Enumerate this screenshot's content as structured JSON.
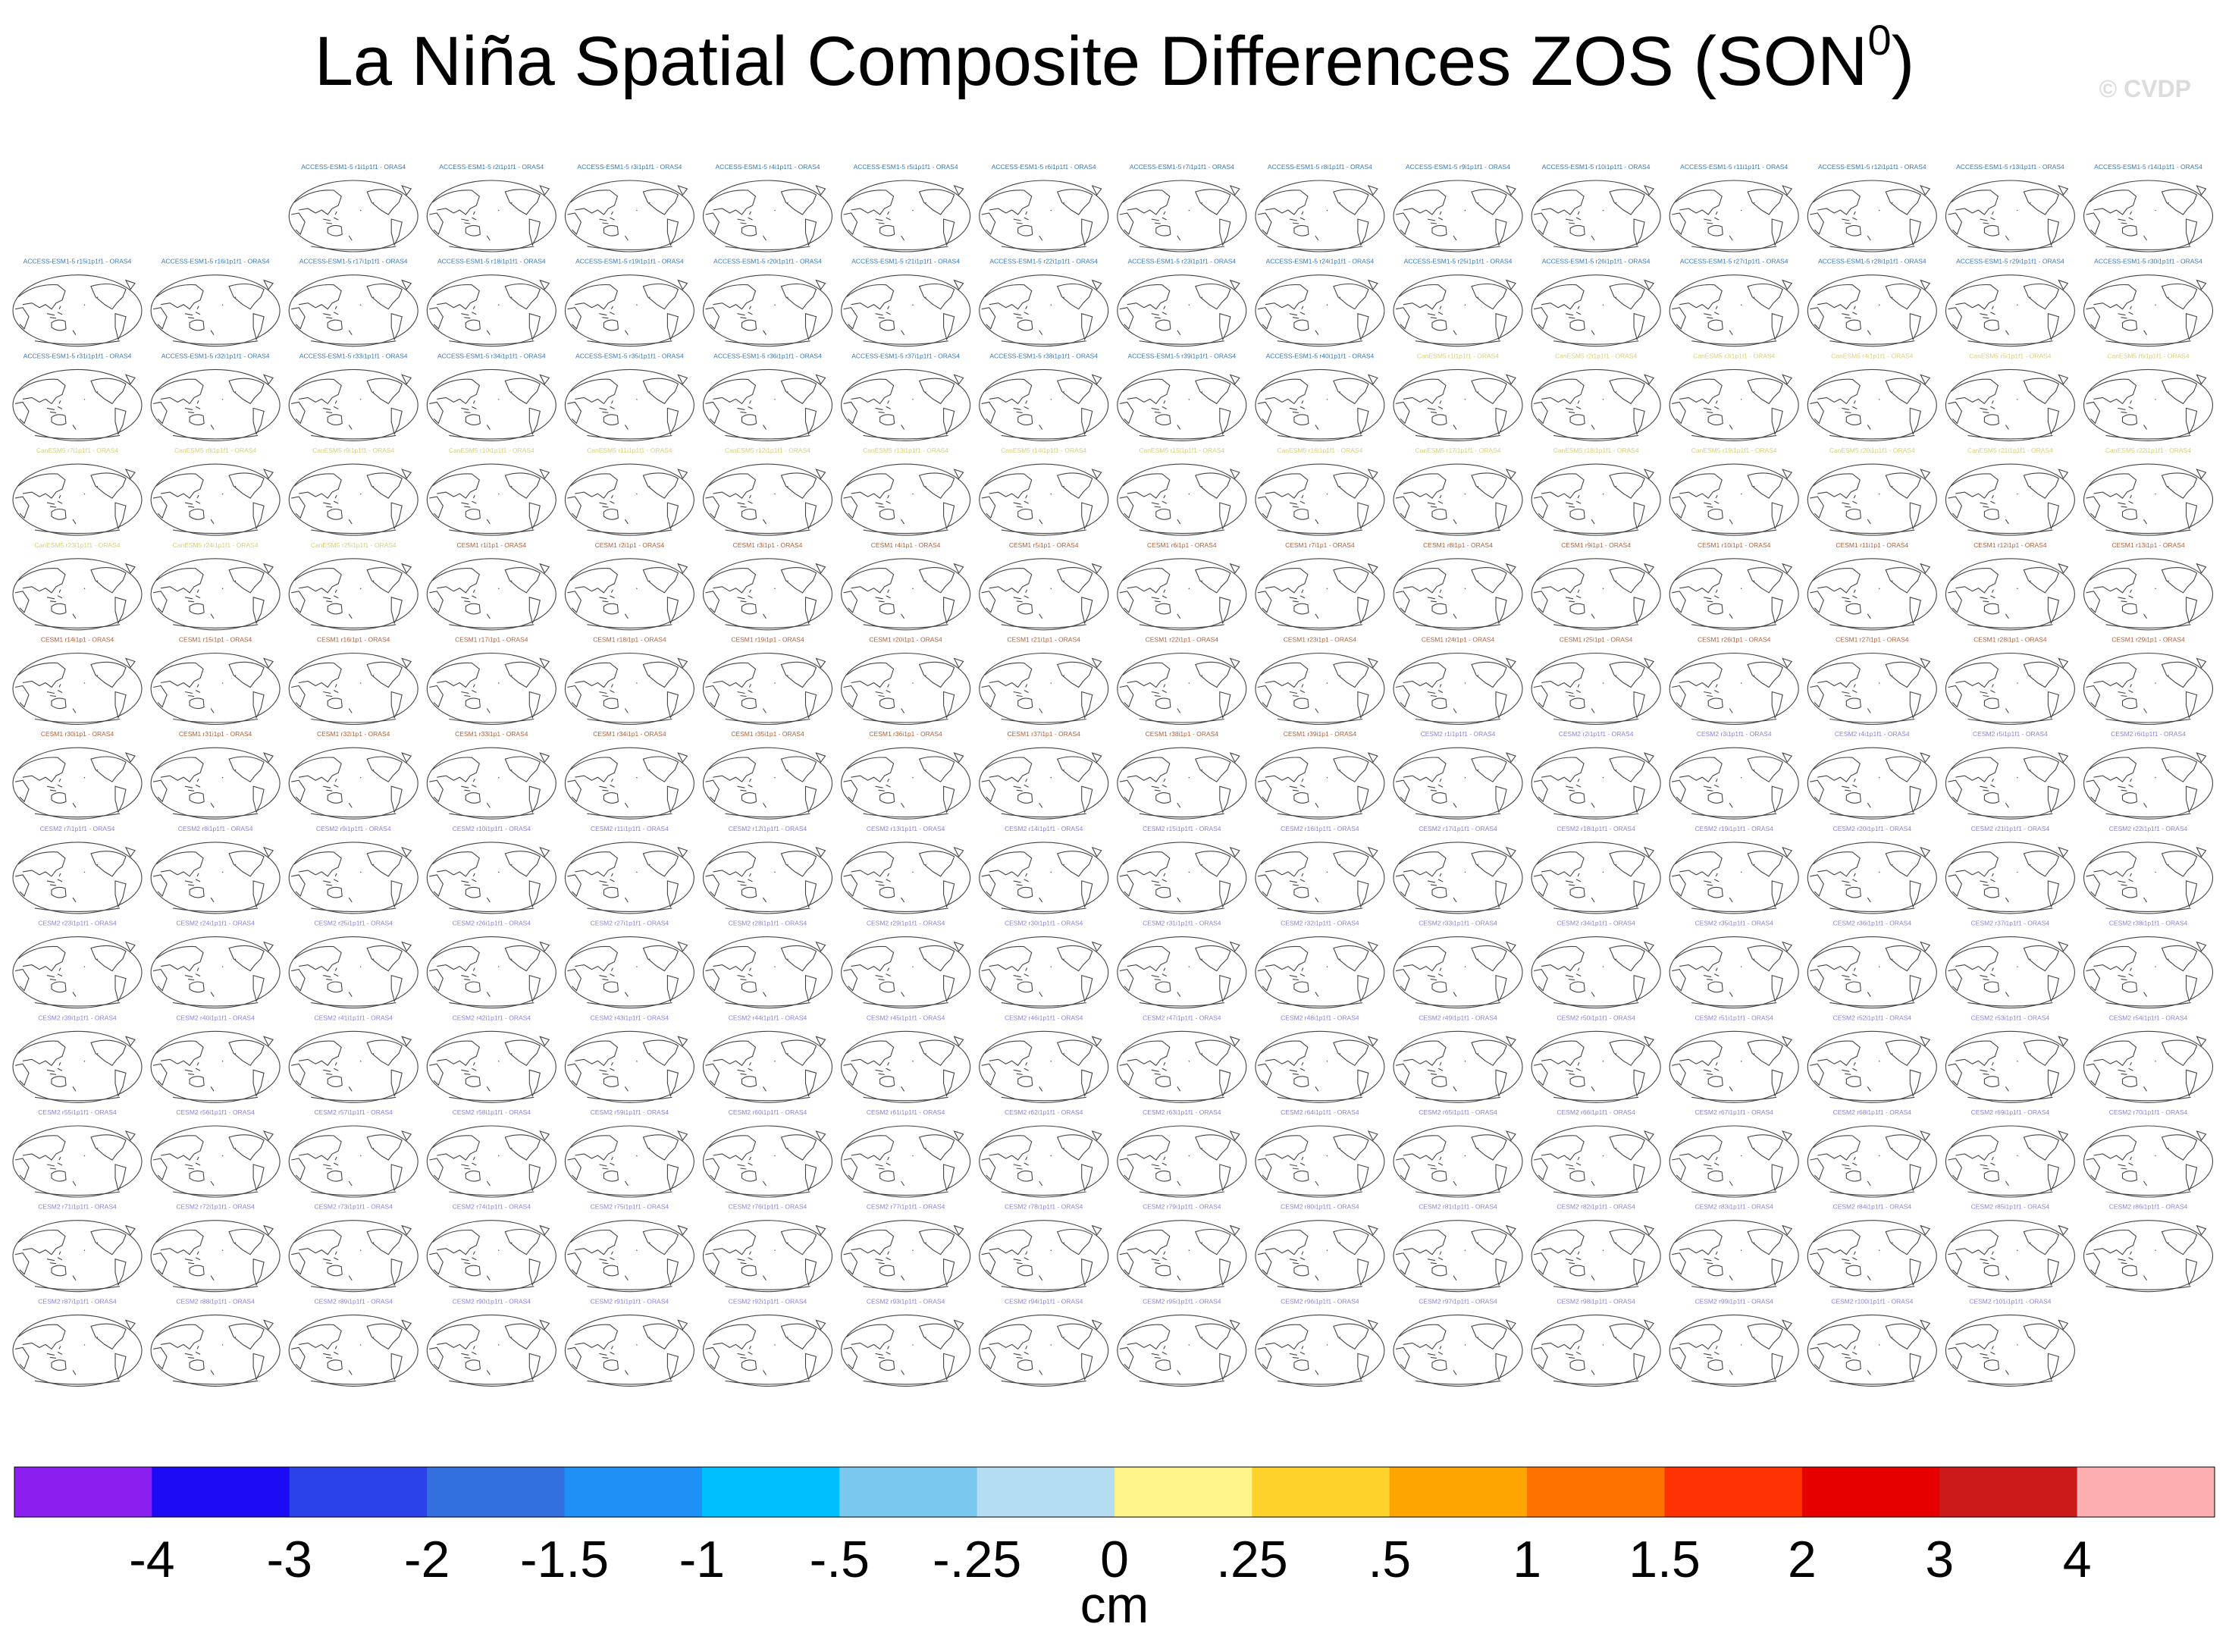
{
  "title": "La Niña Spatial Composite Differences ZOS (SON",
  "title_sup": "0",
  "title_end": ")",
  "copyright": "© CVDP",
  "groups": [
    {
      "color": "#3a78b4",
      "labels": [
        "ACCESS-ESM1-5 r1i1p1f1 - ORAS4",
        "ACCESS-ESM1-5 r2i1p1f1 - ORAS4",
        "ACCESS-ESM1-5 r3i1p1f1 - ORAS4",
        "ACCESS-ESM1-5 r4i1p1f1 - ORAS4",
        "ACCESS-ESM1-5 r5i1p1f1 - ORAS4",
        "ACCESS-ESM1-5 r6i1p1f1 - ORAS4",
        "ACCESS-ESM1-5 r7i1p1f1 - ORAS4",
        "ACCESS-ESM1-5 r8i1p1f1 - ORAS4",
        "ACCESS-ESM1-5 r9i1p1f1 - ORAS4",
        "ACCESS-ESM1-5 r10i1p1f1 - ORAS4",
        "ACCESS-ESM1-5 r11i1p1f1 - ORAS4",
        "ACCESS-ESM1-5 r12i1p1f1 - ORAS4",
        "ACCESS-ESM1-5 r13i1p1f1 - ORAS4",
        "ACCESS-ESM1-5 r14i1p1f1 - ORAS4",
        "ACCESS-ESM1-5 r15i1p1f1 - ORAS4",
        "ACCESS-ESM1-5 r16i1p1f1 - ORAS4",
        "ACCESS-ESM1-5 r17i1p1f1 - ORAS4",
        "ACCESS-ESM1-5 r18i1p1f1 - ORAS4",
        "ACCESS-ESM1-5 r19i1p1f1 - ORAS4",
        "ACCESS-ESM1-5 r20i1p1f1 - ORAS4",
        "ACCESS-ESM1-5 r21i1p1f1 - ORAS4",
        "ACCESS-ESM1-5 r22i1p1f1 - ORAS4",
        "ACCESS-ESM1-5 r23i1p1f1 - ORAS4",
        "ACCESS-ESM1-5 r24i1p1f1 - ORAS4",
        "ACCESS-ESM1-5 r25i1p1f1 - ORAS4",
        "ACCESS-ESM1-5 r26i1p1f1 - ORAS4",
        "ACCESS-ESM1-5 r27i1p1f1 - ORAS4",
        "ACCESS-ESM1-5 r28i1p1f1 - ORAS4",
        "ACCESS-ESM1-5 r29i1p1f1 - ORAS4",
        "ACCESS-ESM1-5 r30i1p1f1 - ORAS4",
        "ACCESS-ESM1-5 r31i1p1f1 - ORAS4",
        "ACCESS-ESM1-5 r32i1p1f1 - ORAS4",
        "ACCESS-ESM1-5 r33i1p1f1 - ORAS4",
        "ACCESS-ESM1-5 r34i1p1f1 - ORAS4",
        "ACCESS-ESM1-5 r35i1p1f1 - ORAS4",
        "ACCESS-ESM1-5 r36i1p1f1 - ORAS4",
        "ACCESS-ESM1-5 r37i1p1f1 - ORAS4",
        "ACCESS-ESM1-5 r38i1p1f1 - ORAS4",
        "ACCESS-ESM1-5 r39i1p1f1 - ORAS4",
        "ACCESS-ESM1-5 r40i1p1f1 - ORAS4"
      ]
    },
    {
      "color": "#d8cf78",
      "labels": [
        "CanESM5 r1i1p1f1 - ORAS4",
        "CanESM5 r2i1p1f1 - ORAS4",
        "CanESM5 r3i1p1f1 - ORAS4",
        "CanESM5 r4i1p1f1 - ORAS4",
        "CanESM5 r5i1p1f1 - ORAS4",
        "CanESM5 r6i1p1f1 - ORAS4",
        "CanESM5 r7i1p1f1 - ORAS4",
        "CanESM5 r8i1p1f1 - ORAS4",
        "CanESM5 r9i1p1f1 - ORAS4",
        "CanESM5 r10i1p1f1 - ORAS4",
        "CanESM5 r11i1p1f1 - ORAS4",
        "CanESM5 r12i1p1f1 - ORAS4",
        "CanESM5 r13i1p1f1 - ORAS4",
        "CanESM5 r14i1p1f1 - ORAS4",
        "CanESM5 r15i1p1f1 - ORAS4",
        "CanESM5 r16i1p1f1 - ORAS4",
        "CanESM5 r17i1p1f1 - ORAS4",
        "CanESM5 r18i1p1f1 - ORAS4",
        "CanESM5 r19i1p1f1 - ORAS4",
        "CanESM5 r20i1p1f1 - ORAS4",
        "CanESM5 r21i1p1f1 - ORAS4",
        "CanESM5 r22i1p1f1 - ORAS4",
        "CanESM5 r23i1p1f1 - ORAS4",
        "CanESM5 r24i1p1f1 - ORAS4",
        "CanESM5 r25i1p1f1 - ORAS4"
      ]
    },
    {
      "color": "#b0603a",
      "labels": [
        "CESM1 r1i1p1 - ORAS4",
        "CESM1 r2i1p1 - ORAS4",
        "CESM1 r3i1p1 - ORAS4",
        "CESM1 r4i1p1 - ORAS4",
        "CESM1 r5i1p1 - ORAS4",
        "CESM1 r6i1p1 - ORAS4",
        "CESM1 r7i1p1 - ORAS4",
        "CESM1 r8i1p1 - ORAS4",
        "CESM1 r9i1p1 - ORAS4",
        "CESM1 r10i1p1 - ORAS4",
        "CESM1 r11i1p1 - ORAS4",
        "CESM1 r12i1p1 - ORAS4",
        "CESM1 r13i1p1 - ORAS4",
        "CESM1 r14i1p1 - ORAS4",
        "CESM1 r15i1p1 - ORAS4",
        "CESM1 r16i1p1 - ORAS4",
        "CESM1 r17i1p1 - ORAS4",
        "CESM1 r18i1p1 - ORAS4",
        "CESM1 r19i1p1 - ORAS4",
        "CESM1 r20i1p1 - ORAS4",
        "CESM1 r21i1p1 - ORAS4",
        "CESM1 r22i1p1 - ORAS4",
        "CESM1 r23i1p1 - ORAS4",
        "CESM1 r24i1p1 - ORAS4",
        "CESM1 r25i1p1 - ORAS4",
        "CESM1 r26i1p1 - ORAS4",
        "CESM1 r27i1p1 - ORAS4",
        "CESM1 r28i1p1 - ORAS4",
        "CESM1 r29i1p1 - ORAS4",
        "CESM1 r30i1p1 - ORAS4",
        "CESM1 r31i1p1 - ORAS4",
        "CESM1 r32i1p1 - ORAS4",
        "CESM1 r33i1p1 - ORAS4",
        "CESM1 r34i1p1 - ORAS4",
        "CESM1 r35i1p1 - ORAS4",
        "CESM1 r36i1p1 - ORAS4",
        "CESM1 r37i1p1 - ORAS4",
        "CESM1 r38i1p1 - ORAS4",
        "CESM1 r39i1p1 - ORAS4"
      ]
    },
    {
      "color": "#8d82d8",
      "labels": [
        "CESM2 r1i1p1f1 - ORAS4",
        "CESM2 r2i1p1f1 - ORAS4",
        "CESM2 r3i1p1f1 - ORAS4",
        "CESM2 r4i1p1f1 - ORAS4",
        "CESM2 r5i1p1f1 - ORAS4",
        "CESM2 r6i1p1f1 - ORAS4",
        "CESM2 r7i1p1f1 - ORAS4",
        "CESM2 r8i1p1f1 - ORAS4",
        "CESM2 r9i1p1f1 - ORAS4",
        "CESM2 r10i1p1f1 - ORAS4",
        "CESM2 r11i1p1f1 - ORAS4",
        "CESM2 r12i1p1f1 - ORAS4",
        "CESM2 r13i1p1f1 - ORAS4",
        "CESM2 r14i1p1f1 - ORAS4",
        "CESM2 r15i1p1f1 - ORAS4",
        "CESM2 r16i1p1f1 - ORAS4",
        "CESM2 r17i1p1f1 - ORAS4",
        "CESM2 r18i1p1f1 - ORAS4",
        "CESM2 r19i1p1f1 - ORAS4",
        "CESM2 r20i1p1f1 - ORAS4",
        "CESM2 r21i1p1f1 - ORAS4",
        "CESM2 r22i1p1f1 - ORAS4",
        "CESM2 r23i1p1f1 - ORAS4",
        "CESM2 r24i1p1f1 - ORAS4",
        "CESM2 r25i1p1f1 - ORAS4",
        "CESM2 r26i1p1f1 - ORAS4",
        "CESM2 r27i1p1f1 - ORAS4",
        "CESM2 r28i1p1f1 - ORAS4",
        "CESM2 r29i1p1f1 - ORAS4",
        "CESM2 r30i1p1f1 - ORAS4",
        "CESM2 r31i1p1f1 - ORAS4",
        "CESM2 r32i1p1f1 - ORAS4",
        "CESM2 r33i1p1f1 - ORAS4",
        "CESM2 r34i1p1f1 - ORAS4",
        "CESM2 r35i1p1f1 - ORAS4",
        "CESM2 r36i1p1f1 - ORAS4",
        "CESM2 r37i1p1f1 - ORAS4",
        "CESM2 r38i1p1f1 - ORAS4",
        "CESM2 r39i1p1f1 - ORAS4",
        "CESM2 r40i1p1f1 - ORAS4",
        "CESM2 r41i1p1f1 - ORAS4",
        "CESM2 r42i1p1f1 - ORAS4",
        "CESM2 r43i1p1f1 - ORAS4",
        "CESM2 r44i1p1f1 - ORAS4",
        "CESM2 r45i1p1f1 - ORAS4",
        "CESM2 r46i1p1f1 - ORAS4",
        "CESM2 r47i1p1f1 - ORAS4",
        "CESM2 r48i1p1f1 - ORAS4",
        "CESM2 r49i1p1f1 - ORAS4",
        "CESM2 r50i1p1f1 - ORAS4",
        "CESM2 r51i1p1f1 - ORAS4",
        "CESM2 r52i1p1f1 - ORAS4",
        "CESM2 r53i1p1f1 - ORAS4",
        "CESM2 r54i1p1f1 - ORAS4",
        "CESM2 r55i1p1f1 - ORAS4",
        "CESM2 r56i1p1f1 - ORAS4",
        "CESM2 r57i1p1f1 - ORAS4",
        "CESM2 r58i1p1f1 - ORAS4",
        "CESM2 r59i1p1f1 - ORAS4",
        "CESM2 r60i1p1f1 - ORAS4",
        "CESM2 r61i1p1f1 - ORAS4",
        "CESM2 r62i1p1f1 - ORAS4",
        "CESM2 r63i1p1f1 - ORAS4",
        "CESM2 r64i1p1f1 - ORAS4",
        "CESM2 r65i1p1f1 - ORAS4",
        "CESM2 r66i1p1f1 - ORAS4",
        "CESM2 r67i1p1f1 - ORAS4",
        "CESM2 r68i1p1f1 - ORAS4",
        "CESM2 r69i1p1f1 - ORAS4",
        "CESM2 r70i1p1f1 - ORAS4",
        "CESM2 r71i1p1f1 - ORAS4",
        "CESM2 r72i1p1f1 - ORAS4",
        "CESM2 r73i1p1f1 - ORAS4",
        "CESM2 r74i1p1f1 - ORAS4",
        "CESM2 r75i1p1f1 - ORAS4",
        "CESM2 r76i1p1f1 - ORAS4",
        "CESM2 r77i1p1f1 - ORAS4",
        "CESM2 r78i1p1f1 - ORAS4",
        "CESM2 r79i1p1f1 - ORAS4",
        "CESM2 r80i1p1f1 - ORAS4",
        "CESM2 r81i1p1f1 - ORAS4",
        "CESM2 r82i1p1f1 - ORAS4",
        "CESM2 r83i1p1f1 - ORAS4",
        "CESM2 r84i1p1f1 - ORAS4",
        "CESM2 r85i1p1f1 - ORAS4",
        "CESM2 r86i1p1f1 - ORAS4",
        "CESM2 r87i1p1f1 - ORAS4",
        "CESM2 r88i1p1f1 - ORAS4",
        "CESM2 r89i1p1f1 - ORAS4",
        "CESM2 r90i1p1f1 - ORAS4",
        "CESM2 r91i1p1f1 - ORAS4",
        "CESM2 r92i1p1f1 - ORAS4",
        "CESM2 r93i1p1f1 - ORAS4",
        "CESM2 r94i1p1f1 - ORAS4",
        "CESM2 r95i1p1f1 - ORAS4",
        "CESM2 r96i1p1f1 - ORAS4",
        "CESM2 r97i1p1f1 - ORAS4",
        "CESM2 r98i1p1f1 - ORAS4",
        "CESM2 r99i1p1f1 - ORAS4",
        "CESM2 r100i1p1f1 - ORAS4",
        "CESM2 r101i1p1f1 - ORAS4"
      ]
    }
  ],
  "colorbar": {
    "colors": [
      "#8b1ff0",
      "#1e0bf5",
      "#2b42e8",
      "#3270e0",
      "#1f90f5",
      "#00bfff",
      "#78c8f0",
      "#b4dcf2",
      "#fef58a",
      "#fed22a",
      "#fea500",
      "#fe7300",
      "#fe3200",
      "#e60000",
      "#cc1a1a",
      "#fcaeb0"
    ],
    "labels": [
      "-4",
      "-3",
      "-2",
      "-1.5",
      "-1",
      "-.5",
      "-.25",
      "0",
      ".25",
      ".5",
      "1",
      "1.5",
      "2",
      "3",
      "4"
    ],
    "unit": "cm"
  }
}
